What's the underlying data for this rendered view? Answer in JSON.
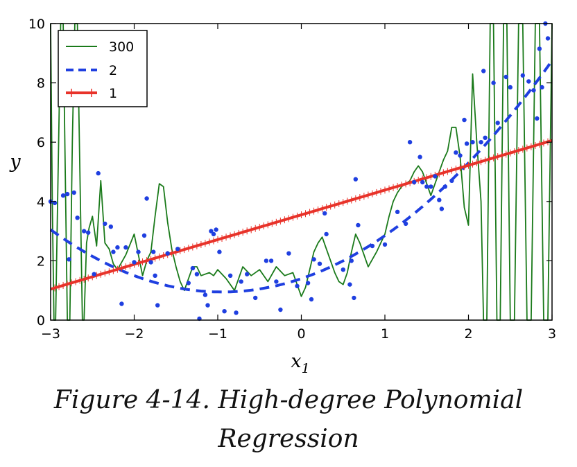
{
  "caption": {
    "line1": "Figure 4-14. High-degree Polynomial",
    "line2": "Regression"
  },
  "chart_data": {
    "type": "scatter",
    "xlabel": "x1",
    "xlabel_base": "x",
    "xlabel_sub": "1",
    "ylabel": "y",
    "xlim": [
      -3,
      3
    ],
    "ylim": [
      0,
      10
    ],
    "xticks": [
      -3,
      -2,
      -1,
      0,
      1,
      2,
      3
    ],
    "xtick_labels": [
      "−3",
      "−2",
      "−1",
      "0",
      "1",
      "2",
      "3"
    ],
    "yticks": [
      0,
      2,
      4,
      6,
      8,
      10
    ],
    "ytick_labels": [
      "0",
      "2",
      "4",
      "6",
      "8",
      "10"
    ],
    "grid": false,
    "legend_position": "top-left",
    "points": {
      "color": "#1f3fe0",
      "data": [
        [
          -3.0,
          4.0
        ],
        [
          -2.95,
          3.95
        ],
        [
          -2.85,
          4.2
        ],
        [
          -2.8,
          4.25
        ],
        [
          -2.78,
          2.05
        ],
        [
          -2.72,
          4.3
        ],
        [
          -2.68,
          3.45
        ],
        [
          -2.6,
          3.0
        ],
        [
          -2.55,
          2.95
        ],
        [
          -2.48,
          1.55
        ],
        [
          -2.43,
          4.95
        ],
        [
          -2.35,
          3.25
        ],
        [
          -2.28,
          3.15
        ],
        [
          -2.25,
          2.3
        ],
        [
          -2.2,
          2.45
        ],
        [
          -2.15,
          0.55
        ],
        [
          -2.1,
          2.45
        ],
        [
          -2.0,
          1.95
        ],
        [
          -1.95,
          2.3
        ],
        [
          -1.88,
          2.85
        ],
        [
          -1.85,
          4.1
        ],
        [
          -1.8,
          1.95
        ],
        [
          -1.77,
          2.3
        ],
        [
          -1.75,
          1.5
        ],
        [
          -1.72,
          0.5
        ],
        [
          -1.6,
          2.25
        ],
        [
          -1.48,
          2.4
        ],
        [
          -1.35,
          1.25
        ],
        [
          -1.3,
          1.75
        ],
        [
          -1.25,
          1.55
        ],
        [
          -1.22,
          0.05
        ],
        [
          -1.15,
          0.85
        ],
        [
          -1.12,
          0.5
        ],
        [
          -1.08,
          3.0
        ],
        [
          -1.05,
          2.9
        ],
        [
          -1.02,
          3.05
        ],
        [
          -0.98,
          2.3
        ],
        [
          -0.92,
          0.3
        ],
        [
          -0.85,
          1.5
        ],
        [
          -0.78,
          0.25
        ],
        [
          -0.72,
          1.3
        ],
        [
          -0.65,
          1.55
        ],
        [
          -0.55,
          0.75
        ],
        [
          -0.42,
          2.0
        ],
        [
          -0.36,
          2.0
        ],
        [
          -0.3,
          1.3
        ],
        [
          -0.25,
          0.35
        ],
        [
          -0.15,
          2.25
        ],
        [
          -0.05,
          1.15
        ],
        [
          0.08,
          1.25
        ],
        [
          0.12,
          0.7
        ],
        [
          0.15,
          2.05
        ],
        [
          0.22,
          1.9
        ],
        [
          0.28,
          3.6
        ],
        [
          0.3,
          2.9
        ],
        [
          0.5,
          1.7
        ],
        [
          0.58,
          1.2
        ],
        [
          0.6,
          2.0
        ],
        [
          0.63,
          0.75
        ],
        [
          0.65,
          4.75
        ],
        [
          0.68,
          3.2
        ],
        [
          0.85,
          2.5
        ],
        [
          1.0,
          2.55
        ],
        [
          1.15,
          3.65
        ],
        [
          1.25,
          3.25
        ],
        [
          1.3,
          6.0
        ],
        [
          1.35,
          4.65
        ],
        [
          1.42,
          5.5
        ],
        [
          1.45,
          4.65
        ],
        [
          1.5,
          4.5
        ],
        [
          1.55,
          4.5
        ],
        [
          1.6,
          4.85
        ],
        [
          1.65,
          4.05
        ],
        [
          1.68,
          3.75
        ],
        [
          1.72,
          4.5
        ],
        [
          1.8,
          4.7
        ],
        [
          1.85,
          5.65
        ],
        [
          1.9,
          5.55
        ],
        [
          1.95,
          6.75
        ],
        [
          1.98,
          5.95
        ],
        [
          2.05,
          6.0
        ],
        [
          2.15,
          6.0
        ],
        [
          2.18,
          8.4
        ],
        [
          2.2,
          6.15
        ],
        [
          2.3,
          8.0
        ],
        [
          2.35,
          6.65
        ],
        [
          2.45,
          8.2
        ],
        [
          2.5,
          7.85
        ],
        [
          2.65,
          8.25
        ],
        [
          2.72,
          8.05
        ],
        [
          2.78,
          7.75
        ],
        [
          2.82,
          6.8
        ],
        [
          2.85,
          9.15
        ],
        [
          2.88,
          7.85
        ],
        [
          2.92,
          10.0
        ],
        [
          2.95,
          9.5
        ]
      ]
    },
    "series": [
      {
        "name": "300",
        "color": "#1a7a1a",
        "style": "solid",
        "x": [
          -3.0,
          -2.98,
          -2.96,
          -2.94,
          -2.91,
          -2.88,
          -2.85,
          -2.82,
          -2.8,
          -2.77,
          -2.74,
          -2.71,
          -2.68,
          -2.65,
          -2.62,
          -2.6,
          -2.57,
          -2.54,
          -2.5,
          -2.45,
          -2.4,
          -2.35,
          -2.3,
          -2.25,
          -2.2,
          -2.1,
          -2.0,
          -1.9,
          -1.85,
          -1.8,
          -1.75,
          -1.7,
          -1.65,
          -1.6,
          -1.55,
          -1.5,
          -1.45,
          -1.4,
          -1.3,
          -1.25,
          -1.2,
          -1.1,
          -1.05,
          -1.0,
          -0.9,
          -0.8,
          -0.7,
          -0.6,
          -0.5,
          -0.4,
          -0.3,
          -0.2,
          -0.1,
          0.0,
          0.05,
          0.1,
          0.15,
          0.2,
          0.25,
          0.3,
          0.35,
          0.4,
          0.45,
          0.5,
          0.55,
          0.6,
          0.65,
          0.7,
          0.8,
          0.9,
          1.0,
          1.05,
          1.1,
          1.15,
          1.2,
          1.3,
          1.35,
          1.4,
          1.45,
          1.5,
          1.55,
          1.6,
          1.65,
          1.7,
          1.75,
          1.8,
          1.85,
          1.9,
          1.95,
          2.0,
          2.05,
          2.1,
          2.15,
          2.18,
          2.22,
          2.26,
          2.3,
          2.34,
          2.38,
          2.42,
          2.46,
          2.5,
          2.55,
          2.6,
          2.65,
          2.7,
          2.75,
          2.8,
          2.85,
          2.9,
          2.95,
          3.0
        ],
        "y": [
          10.0,
          4.0,
          0.0,
          0.0,
          5.0,
          10.0,
          10.0,
          4.0,
          0.0,
          0.0,
          6.0,
          10.0,
          10.0,
          5.0,
          0.0,
          0.0,
          2.6,
          3.1,
          3.5,
          2.5,
          4.7,
          2.6,
          2.4,
          1.9,
          1.7,
          2.2,
          2.9,
          1.5,
          2.0,
          2.3,
          3.5,
          4.6,
          4.5,
          3.3,
          2.4,
          1.8,
          1.3,
          1.0,
          1.8,
          1.8,
          1.5,
          1.6,
          1.5,
          1.7,
          1.4,
          1.0,
          1.8,
          1.5,
          1.7,
          1.3,
          1.8,
          1.5,
          1.6,
          0.8,
          1.1,
          1.7,
          2.3,
          2.6,
          2.8,
          2.4,
          2.0,
          1.6,
          1.3,
          1.2,
          1.6,
          2.3,
          2.9,
          2.6,
          1.8,
          2.3,
          2.9,
          3.5,
          4.0,
          4.3,
          4.5,
          4.7,
          5.0,
          5.2,
          5.0,
          4.6,
          4.2,
          4.6,
          5.0,
          5.4,
          5.7,
          6.5,
          6.5,
          5.5,
          3.8,
          3.2,
          8.3,
          6.0,
          4.0,
          0.0,
          0.0,
          10.0,
          10.0,
          0.0,
          0.0,
          10.0,
          10.0,
          0.0,
          0.0,
          10.0,
          10.0,
          0.0,
          0.0,
          10.0,
          10.0,
          0.0,
          0.0,
          10.0
        ]
      },
      {
        "name": "2",
        "color": "#1f3fe0",
        "style": "dashed",
        "poly": [
          1.4,
          0.95,
          0.5
        ]
      },
      {
        "name": "1",
        "color": "#e8332a",
        "style": "solid",
        "marker": "plus",
        "poly": [
          3.55,
          0.835,
          0.0
        ]
      }
    ]
  }
}
